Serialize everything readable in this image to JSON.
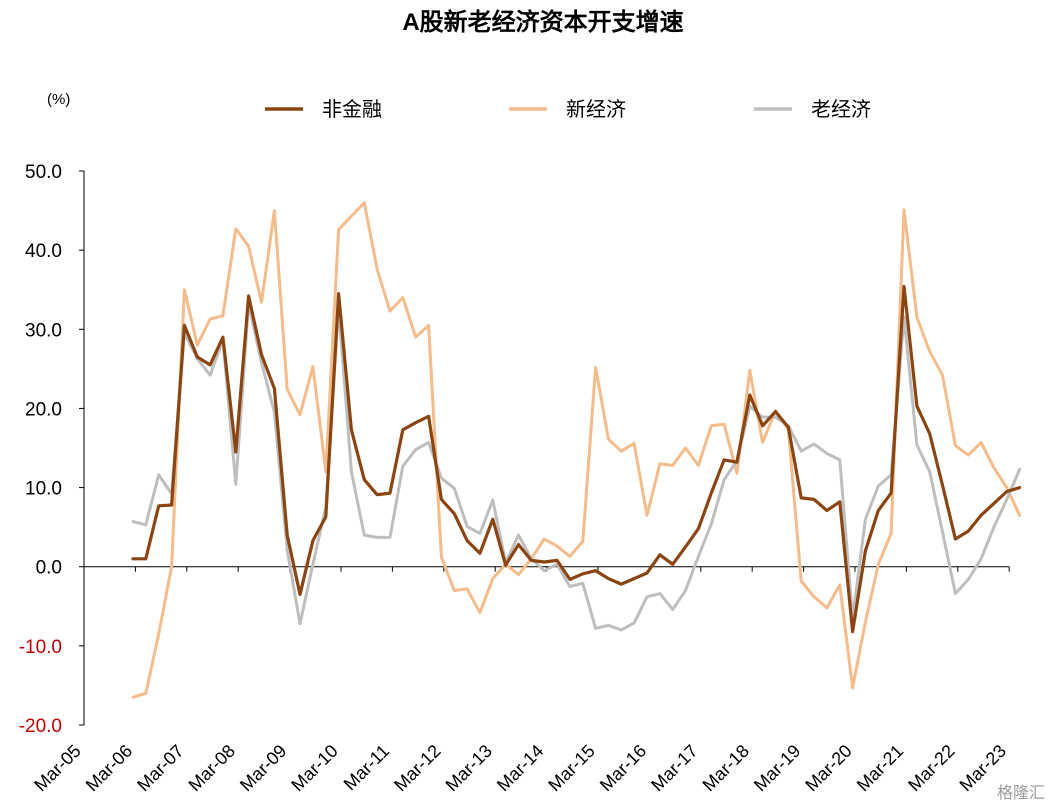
{
  "watermark": "格隆汇",
  "chart_data": {
    "type": "line",
    "title": "A股新老经济资本开支增速",
    "unit_label": "(%)",
    "legend_position": "top",
    "ylim": [
      -20,
      50
    ],
    "yticks": [
      "50.0",
      "40.0",
      "30.0",
      "20.0",
      "10.0",
      "0.0",
      "-10.0",
      "-20.0"
    ],
    "xticks": [
      "Mar-05",
      "Mar-06",
      "Mar-07",
      "Mar-08",
      "Mar-09",
      "Mar-10",
      "Mar-11",
      "Mar-12",
      "Mar-13",
      "Mar-14",
      "Mar-15",
      "Mar-16",
      "Mar-17",
      "Mar-18",
      "Mar-19",
      "Mar-20",
      "Mar-21",
      "Mar-22",
      "Mar-23"
    ],
    "x_start": "Mar-06",
    "x_frequency": "quarterly",
    "grid": false,
    "series": [
      {
        "name": "非金融",
        "color": "#8B4513",
        "values": [
          1.0,
          1.0,
          7.7,
          7.8,
          30.5,
          26.5,
          25.5,
          29.0,
          14.5,
          34.2,
          26.8,
          22.5,
          4.0,
          -3.5,
          3.3,
          6.3,
          34.5,
          17.3,
          11.0,
          9.1,
          9.3,
          17.3,
          18.2,
          19.0,
          8.5,
          6.7,
          3.3,
          1.7,
          6.0,
          0.2,
          2.8,
          0.8,
          0.6,
          0.8,
          -1.6,
          -0.9,
          -0.5,
          -1.5,
          -2.2,
          -1.5,
          -0.8,
          1.5,
          0.3,
          2.5,
          4.8,
          9.3,
          13.5,
          13.2,
          21.7,
          17.8,
          19.6,
          17.6,
          8.7,
          8.5,
          7.1,
          8.2,
          -8.2,
          2.0,
          7.1,
          9.3,
          35.4,
          20.3,
          16.8,
          10.3,
          3.5,
          4.5,
          6.5,
          8.0,
          9.5,
          10.0
        ]
      },
      {
        "name": "新经济",
        "color": "#F4BC8A",
        "values": [
          -16.5,
          -16.0,
          -8.5,
          0.0,
          35.0,
          28.0,
          31.3,
          31.7,
          42.7,
          40.5,
          33.4,
          45.0,
          22.4,
          19.2,
          25.3,
          12.0,
          42.6,
          44.3,
          46.0,
          37.6,
          32.3,
          34.0,
          29.0,
          30.5,
          1.2,
          -3.0,
          -2.8,
          -5.8,
          -1.5,
          0.3,
          -1.0,
          1.0,
          3.5,
          2.6,
          1.3,
          3.2,
          25.2,
          16.1,
          14.6,
          15.6,
          6.5,
          13.0,
          12.8,
          15.0,
          12.8,
          17.8,
          18.0,
          11.8,
          24.8,
          15.7,
          19.7,
          17.3,
          -1.8,
          -3.8,
          -5.2,
          -2.3,
          -15.3,
          -7.0,
          0.3,
          4.2,
          45.1,
          31.5,
          27.2,
          24.2,
          15.3,
          14.1,
          15.7,
          12.5,
          10.0,
          6.5
        ]
      },
      {
        "name": "老经济",
        "color": "#BEBEBE",
        "values": [
          5.7,
          5.3,
          11.6,
          9.2,
          29.5,
          26.3,
          24.2,
          28.7,
          10.4,
          33.2,
          25.8,
          19.5,
          2.1,
          -7.2,
          0.3,
          7.5,
          32.8,
          12.0,
          4.0,
          3.7,
          3.7,
          12.7,
          14.8,
          15.7,
          11.2,
          9.9,
          5.1,
          4.2,
          8.4,
          0.5,
          4.0,
          1.0,
          -0.5,
          0.3,
          -2.5,
          -2.1,
          -7.8,
          -7.4,
          -8.0,
          -7.1,
          -3.8,
          -3.4,
          -5.4,
          -3.0,
          1.3,
          5.4,
          11.0,
          13.4,
          20.3,
          18.9,
          18.9,
          17.8,
          14.6,
          15.5,
          14.3,
          13.5,
          -6.5,
          6.0,
          10.2,
          11.6,
          31.6,
          15.4,
          12.0,
          4.4,
          -3.4,
          -1.6,
          1.0,
          5.0,
          8.5,
          12.3
        ]
      }
    ]
  }
}
